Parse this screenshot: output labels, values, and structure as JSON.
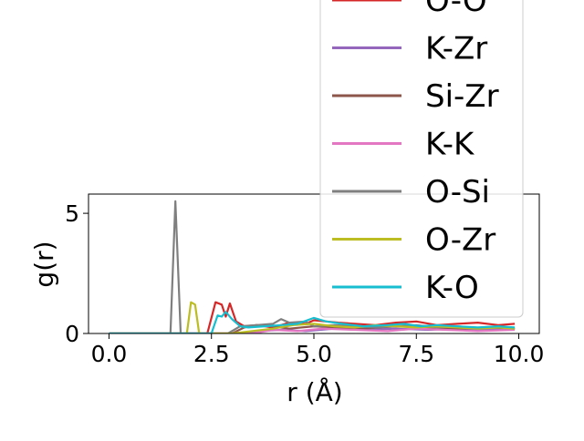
{
  "chart_data": {
    "type": "line",
    "title": "",
    "xlabel": "r (Å)",
    "ylabel": "g(r)",
    "xlim": [
      -0.5,
      10.5
    ],
    "ylim": [
      0,
      5.8
    ],
    "xticks": [
      0.0,
      2.5,
      5.0,
      7.5,
      10.0
    ],
    "xtick_labels": [
      "0.0",
      "2.5",
      "5.0",
      "7.5",
      "10.0"
    ],
    "yticks": [
      0,
      5
    ],
    "ytick_labels": [
      "0",
      "5"
    ],
    "grid": false,
    "legend_placement": "top-right",
    "series": [
      {
        "name": "O-O",
        "color": "#d62728",
        "x": [
          0,
          2.4,
          2.6,
          2.75,
          2.85,
          2.95,
          3.1,
          3.3,
          3.6,
          4.0,
          4.4,
          4.8,
          5.0,
          5.3,
          5.6,
          6.0,
          6.5,
          7.0,
          7.5,
          8.0,
          8.5,
          9.0,
          9.5,
          9.9
        ],
        "y": [
          0,
          0,
          1.3,
          1.2,
          0.7,
          1.25,
          0.5,
          0.3,
          0.35,
          0.25,
          0.45,
          0.4,
          0.55,
          0.5,
          0.45,
          0.4,
          0.35,
          0.45,
          0.5,
          0.35,
          0.4,
          0.45,
          0.35,
          0.4
        ]
      },
      {
        "name": "K-Zr",
        "color": "#9467bd",
        "x": [
          0,
          3.2,
          3.6,
          4.2,
          4.8,
          5.5,
          6.2,
          7.0,
          7.8,
          8.5,
          9.2,
          9.9
        ],
        "y": [
          0,
          0,
          0.1,
          0.15,
          0.1,
          0.2,
          0.15,
          0.2,
          0.15,
          0.2,
          0.15,
          0.2
        ]
      },
      {
        "name": "Si-Zr",
        "color": "#8c564b",
        "x": [
          0,
          3.0,
          3.3,
          3.6,
          4.0,
          4.4,
          5.0,
          5.6,
          6.2,
          7.0,
          7.8,
          8.6,
          9.4,
          9.9
        ],
        "y": [
          0,
          0,
          0.25,
          0.35,
          0.3,
          0.2,
          0.3,
          0.25,
          0.2,
          0.3,
          0.25,
          0.2,
          0.25,
          0.2
        ]
      },
      {
        "name": "K-K",
        "color": "#e377c2",
        "x": [
          0,
          3.5,
          4.0,
          4.6,
          5.2,
          6.0,
          6.8,
          7.5,
          8.2,
          9.0,
          9.9
        ],
        "y": [
          0,
          0,
          0.15,
          0.1,
          0.2,
          0.15,
          0.1,
          0.2,
          0.15,
          0.1,
          0.15
        ]
      },
      {
        "name": "O-Si",
        "color": "#7f7f7f",
        "x": [
          0,
          1.5,
          1.62,
          1.75,
          2.2,
          2.9,
          3.2,
          3.6,
          4.0,
          4.2,
          4.4,
          4.8,
          5.0,
          5.5,
          6.0,
          6.5,
          7.0,
          7.5,
          8.0,
          8.5,
          9.0,
          9.5,
          9.9
        ],
        "y": [
          0,
          0,
          5.5,
          0,
          0,
          0,
          0.3,
          0.35,
          0.4,
          0.6,
          0.45,
          0.5,
          0.3,
          0.35,
          0.3,
          0.25,
          0.3,
          0.35,
          0.25,
          0.3,
          0.2,
          0.25,
          0.2
        ]
      },
      {
        "name": "O-Zr",
        "color": "#bcbd22",
        "x": [
          0,
          1.9,
          2.0,
          2.1,
          2.2,
          2.4,
          3.0,
          3.5,
          4.0,
          4.5,
          5.0,
          5.5,
          6.0,
          6.5,
          7.0,
          7.5,
          8.0,
          8.5,
          9.0,
          9.5,
          9.9
        ],
        "y": [
          0,
          0,
          1.3,
          1.2,
          0,
          0,
          0,
          0.1,
          0.2,
          0.35,
          0.4,
          0.3,
          0.25,
          0.35,
          0.3,
          0.25,
          0.3,
          0.25,
          0.2,
          0.25,
          0.2
        ]
      },
      {
        "name": "K-O",
        "color": "#17becf",
        "x": [
          0,
          2.5,
          2.65,
          2.75,
          2.85,
          3.0,
          3.2,
          3.4,
          3.8,
          4.2,
          4.6,
          5.0,
          5.3,
          5.7,
          6.2,
          6.8,
          7.2,
          7.6,
          8.0,
          8.5,
          9.0,
          9.5,
          9.9
        ],
        "y": [
          0,
          0,
          0.75,
          0.7,
          0.9,
          0.6,
          0.3,
          0.25,
          0.3,
          0.35,
          0.4,
          0.65,
          0.5,
          0.4,
          0.3,
          0.35,
          0.4,
          0.3,
          0.35,
          0.3,
          0.25,
          0.3,
          0.25
        ]
      }
    ]
  }
}
